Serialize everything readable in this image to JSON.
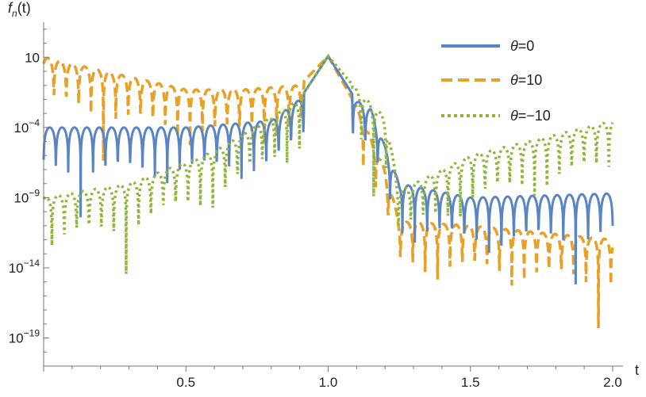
{
  "chart_data": {
    "type": "line",
    "title": "",
    "xlabel": "t",
    "ylabel": "f_n(t)",
    "ylabel_parts": {
      "base": "f",
      "sub": "n",
      "rest": "(t)"
    },
    "y_scale": "log",
    "xlim": [
      0.0,
      2.0
    ],
    "ylim_log10": [
      -21,
      3.5
    ],
    "x_ticks": [
      {
        "value": 0.5,
        "label": "0.5"
      },
      {
        "value": 1.0,
        "label": "1.0"
      },
      {
        "value": 1.5,
        "label": "1.5"
      },
      {
        "value": 2.0,
        "label": "2.0"
      }
    ],
    "y_ticks": [
      {
        "exp": 1,
        "base": "10",
        "sup": ""
      },
      {
        "exp": -4,
        "base": "10",
        "sup": "-4"
      },
      {
        "exp": -9,
        "base": "10",
        "sup": "-9"
      },
      {
        "exp": -14,
        "base": "10",
        "sup": "-14"
      },
      {
        "exp": -19,
        "base": "10",
        "sup": "-19"
      }
    ],
    "grid": false,
    "legend_position": "top-right",
    "oscillation_zero_spacing": 0.0435,
    "series": [
      {
        "name": "θ=0",
        "legend_symbol": "θ",
        "legend_value": "=0",
        "color": "#5b84c4",
        "style": "solid",
        "envelope": [
          {
            "x": 0.0,
            "y": 0.0001
          },
          {
            "x": 0.5,
            "y": 0.0001
          },
          {
            "x": 0.8,
            "y": 0.0003
          },
          {
            "x": 0.9,
            "y": 0.01
          },
          {
            "x": 1.0,
            "y": 12
          },
          {
            "x": 1.1,
            "y": 0.008
          },
          {
            "x": 1.15,
            "y": 0.002
          },
          {
            "x": 1.25,
            "y": 1e-08
          },
          {
            "x": 1.5,
            "y": 1e-09
          },
          {
            "x": 2.0,
            "y": 2e-09
          }
        ]
      },
      {
        "name": "θ=10",
        "legend_symbol": "θ",
        "legend_value": "=10",
        "color": "#e8a126",
        "style": "dashed",
        "envelope": [
          {
            "x": 0.0,
            "y": 10
          },
          {
            "x": 0.5,
            "y": 0.05
          },
          {
            "x": 0.7,
            "y": 0.05
          },
          {
            "x": 0.9,
            "y": 0.1
          },
          {
            "x": 1.0,
            "y": 12
          },
          {
            "x": 1.1,
            "y": 0.003
          },
          {
            "x": 1.2,
            "y": 1e-07
          },
          {
            "x": 1.25,
            "y": 2e-11
          },
          {
            "x": 1.5,
            "y": 1e-11
          },
          {
            "x": 2.0,
            "y": 1e-12
          }
        ]
      },
      {
        "name": "θ=−10",
        "legend_symbol": "θ",
        "legend_value": "=−10",
        "color": "#8db83c",
        "style": "dotted",
        "envelope": [
          {
            "x": 0.0,
            "y": 1e-09
          },
          {
            "x": 0.3,
            "y": 1e-08
          },
          {
            "x": 0.6,
            "y": 2e-06
          },
          {
            "x": 0.9,
            "y": 0.01
          },
          {
            "x": 1.0,
            "y": 12
          },
          {
            "x": 1.1,
            "y": 0.05
          },
          {
            "x": 1.2,
            "y": 0.0005
          },
          {
            "x": 1.25,
            "y": 3e-09
          },
          {
            "x": 1.5,
            "y": 1e-06
          },
          {
            "x": 2.0,
            "y": 0.0003
          }
        ]
      }
    ]
  }
}
